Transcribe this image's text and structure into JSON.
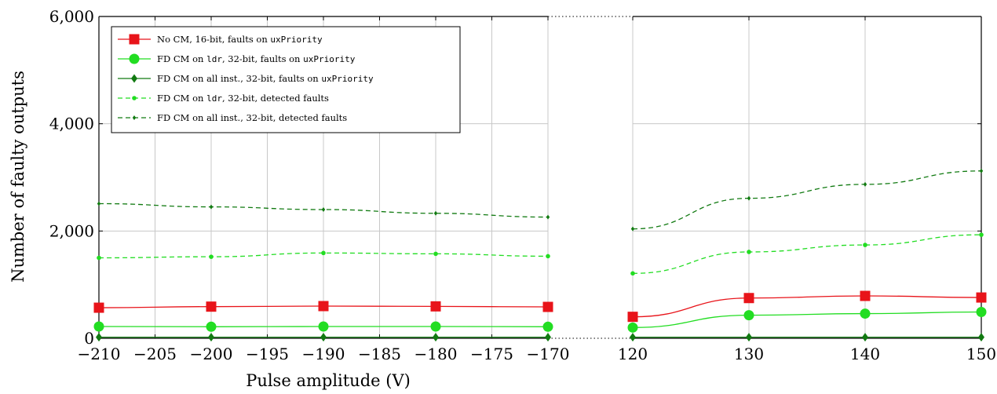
{
  "chart_data": {
    "type": "line",
    "ylabel": "Number of faulty outputs",
    "xlabel": "Pulse amplitude (V)",
    "ylim": [
      0,
      6000
    ],
    "yticks": [
      0,
      2000,
      4000,
      6000
    ],
    "ytick_labels": [
      "0",
      "2,000",
      "4,000",
      "6,000"
    ],
    "grid": true,
    "legend_position": "top-left",
    "broken_x_axis": true,
    "panels": [
      {
        "xlim": [
          -210,
          -170
        ],
        "xticks": [
          -210,
          -205,
          -200,
          -195,
          -190,
          -185,
          -180,
          -175,
          -170
        ],
        "xtick_labels": [
          "−210",
          "−205",
          "−200",
          "−195",
          "−190",
          "−185",
          "−180",
          "−175",
          "−170"
        ],
        "x": [
          -210,
          -200,
          -190,
          -180,
          -170
        ],
        "series": [
          {
            "values": [
              570,
              590,
              600,
              595,
              585
            ]
          },
          {
            "values": [
              220,
              215,
              220,
              220,
              215
            ]
          },
          {
            "values": [
              20,
              20,
              20,
              20,
              20
            ]
          },
          {
            "values": [
              1500,
              1520,
              1590,
              1575,
              1530
            ]
          },
          {
            "values": [
              2510,
              2450,
              2400,
              2330,
              2260
            ]
          }
        ]
      },
      {
        "xlim": [
          120,
          150
        ],
        "xticks": [
          120,
          130,
          140,
          150
        ],
        "xtick_labels": [
          "120",
          "130",
          "140",
          "150"
        ],
        "x": [
          120,
          130,
          140,
          150
        ],
        "series": [
          {
            "values": [
              400,
              750,
              790,
              760
            ]
          },
          {
            "values": [
              200,
              430,
              460,
              490
            ]
          },
          {
            "values": [
              20,
              20,
              20,
              20
            ]
          },
          {
            "values": [
              1210,
              1610,
              1740,
              1930
            ]
          },
          {
            "values": [
              2040,
              2610,
              2870,
              3120
            ]
          }
        ]
      }
    ],
    "legend": [
      {
        "parts": [
          {
            "t": "No CM, 16-bit, faults on ",
            "mono": false
          },
          {
            "t": "uxPriority",
            "mono": true
          }
        ],
        "color": "#e8141a",
        "marker": "square",
        "dash": false
      },
      {
        "parts": [
          {
            "t": "FD CM on ",
            "mono": false
          },
          {
            "t": "ldr",
            "mono": true
          },
          {
            "t": ", 32-bit, faults on ",
            "mono": false
          },
          {
            "t": "uxPriority",
            "mono": true
          }
        ],
        "color": "#22dd22",
        "marker": "circle",
        "dash": false
      },
      {
        "parts": [
          {
            "t": "FD CM on all inst., 32-bit, faults on ",
            "mono": false
          },
          {
            "t": "uxPriority",
            "mono": true
          }
        ],
        "color": "#117a11",
        "marker": "diamond",
        "dash": false
      },
      {
        "parts": [
          {
            "t": "FD CM on ",
            "mono": false
          },
          {
            "t": "ldr",
            "mono": true
          },
          {
            "t": ", 32-bit, detected faults",
            "mono": false
          }
        ],
        "color": "#22dd22",
        "marker": "dot",
        "dash": true
      },
      {
        "parts": [
          {
            "t": "FD CM on all inst., 32-bit, detected faults",
            "mono": false
          }
        ],
        "color": "#117a11",
        "marker": "smalldiamond",
        "dash": true
      }
    ]
  }
}
